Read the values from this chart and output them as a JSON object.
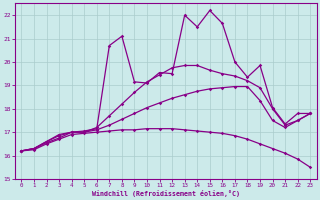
{
  "xlabel": "Windchill (Refroidissement éolien,°C)",
  "bg_color": "#cceaea",
  "grid_color": "#aacccc",
  "line_color": "#880088",
  "ylim": [
    15,
    22.5
  ],
  "xlim": [
    -0.5,
    23.5
  ],
  "yticks": [
    15,
    16,
    17,
    18,
    19,
    20,
    21,
    22
  ],
  "xticks": [
    0,
    1,
    2,
    3,
    4,
    5,
    6,
    7,
    8,
    9,
    10,
    11,
    12,
    13,
    14,
    15,
    16,
    17,
    18,
    19,
    20,
    21,
    22,
    23
  ],
  "line_spike_y": [
    16.2,
    16.3,
    16.6,
    16.9,
    17.0,
    17.05,
    17.15,
    20.7,
    21.1,
    19.15,
    19.1,
    19.55,
    19.5,
    22.0,
    21.5,
    22.2,
    21.65,
    20.0,
    19.35,
    19.85,
    18.05,
    17.35,
    17.8,
    17.8
  ],
  "line_med_high_y": [
    16.2,
    16.3,
    16.6,
    16.85,
    17.0,
    17.0,
    17.2,
    17.7,
    18.2,
    18.7,
    19.15,
    19.45,
    19.75,
    19.85,
    19.85,
    19.65,
    19.5,
    19.4,
    19.2,
    18.9,
    18.0,
    17.3,
    17.5,
    17.8
  ],
  "line_med_y": [
    16.2,
    16.3,
    16.55,
    16.75,
    17.0,
    17.0,
    17.1,
    17.3,
    17.55,
    17.8,
    18.05,
    18.25,
    18.45,
    18.6,
    18.75,
    18.85,
    18.9,
    18.95,
    18.95,
    18.35,
    17.5,
    17.2,
    17.5,
    17.8
  ],
  "line_flat_y": [
    16.2,
    16.25,
    16.5,
    16.7,
    16.9,
    16.95,
    17.0,
    17.05,
    17.1,
    17.1,
    17.15,
    17.15,
    17.15,
    17.1,
    17.05,
    17.0,
    16.95,
    16.85,
    16.7,
    16.5,
    16.3,
    16.1,
    15.85,
    15.5
  ]
}
